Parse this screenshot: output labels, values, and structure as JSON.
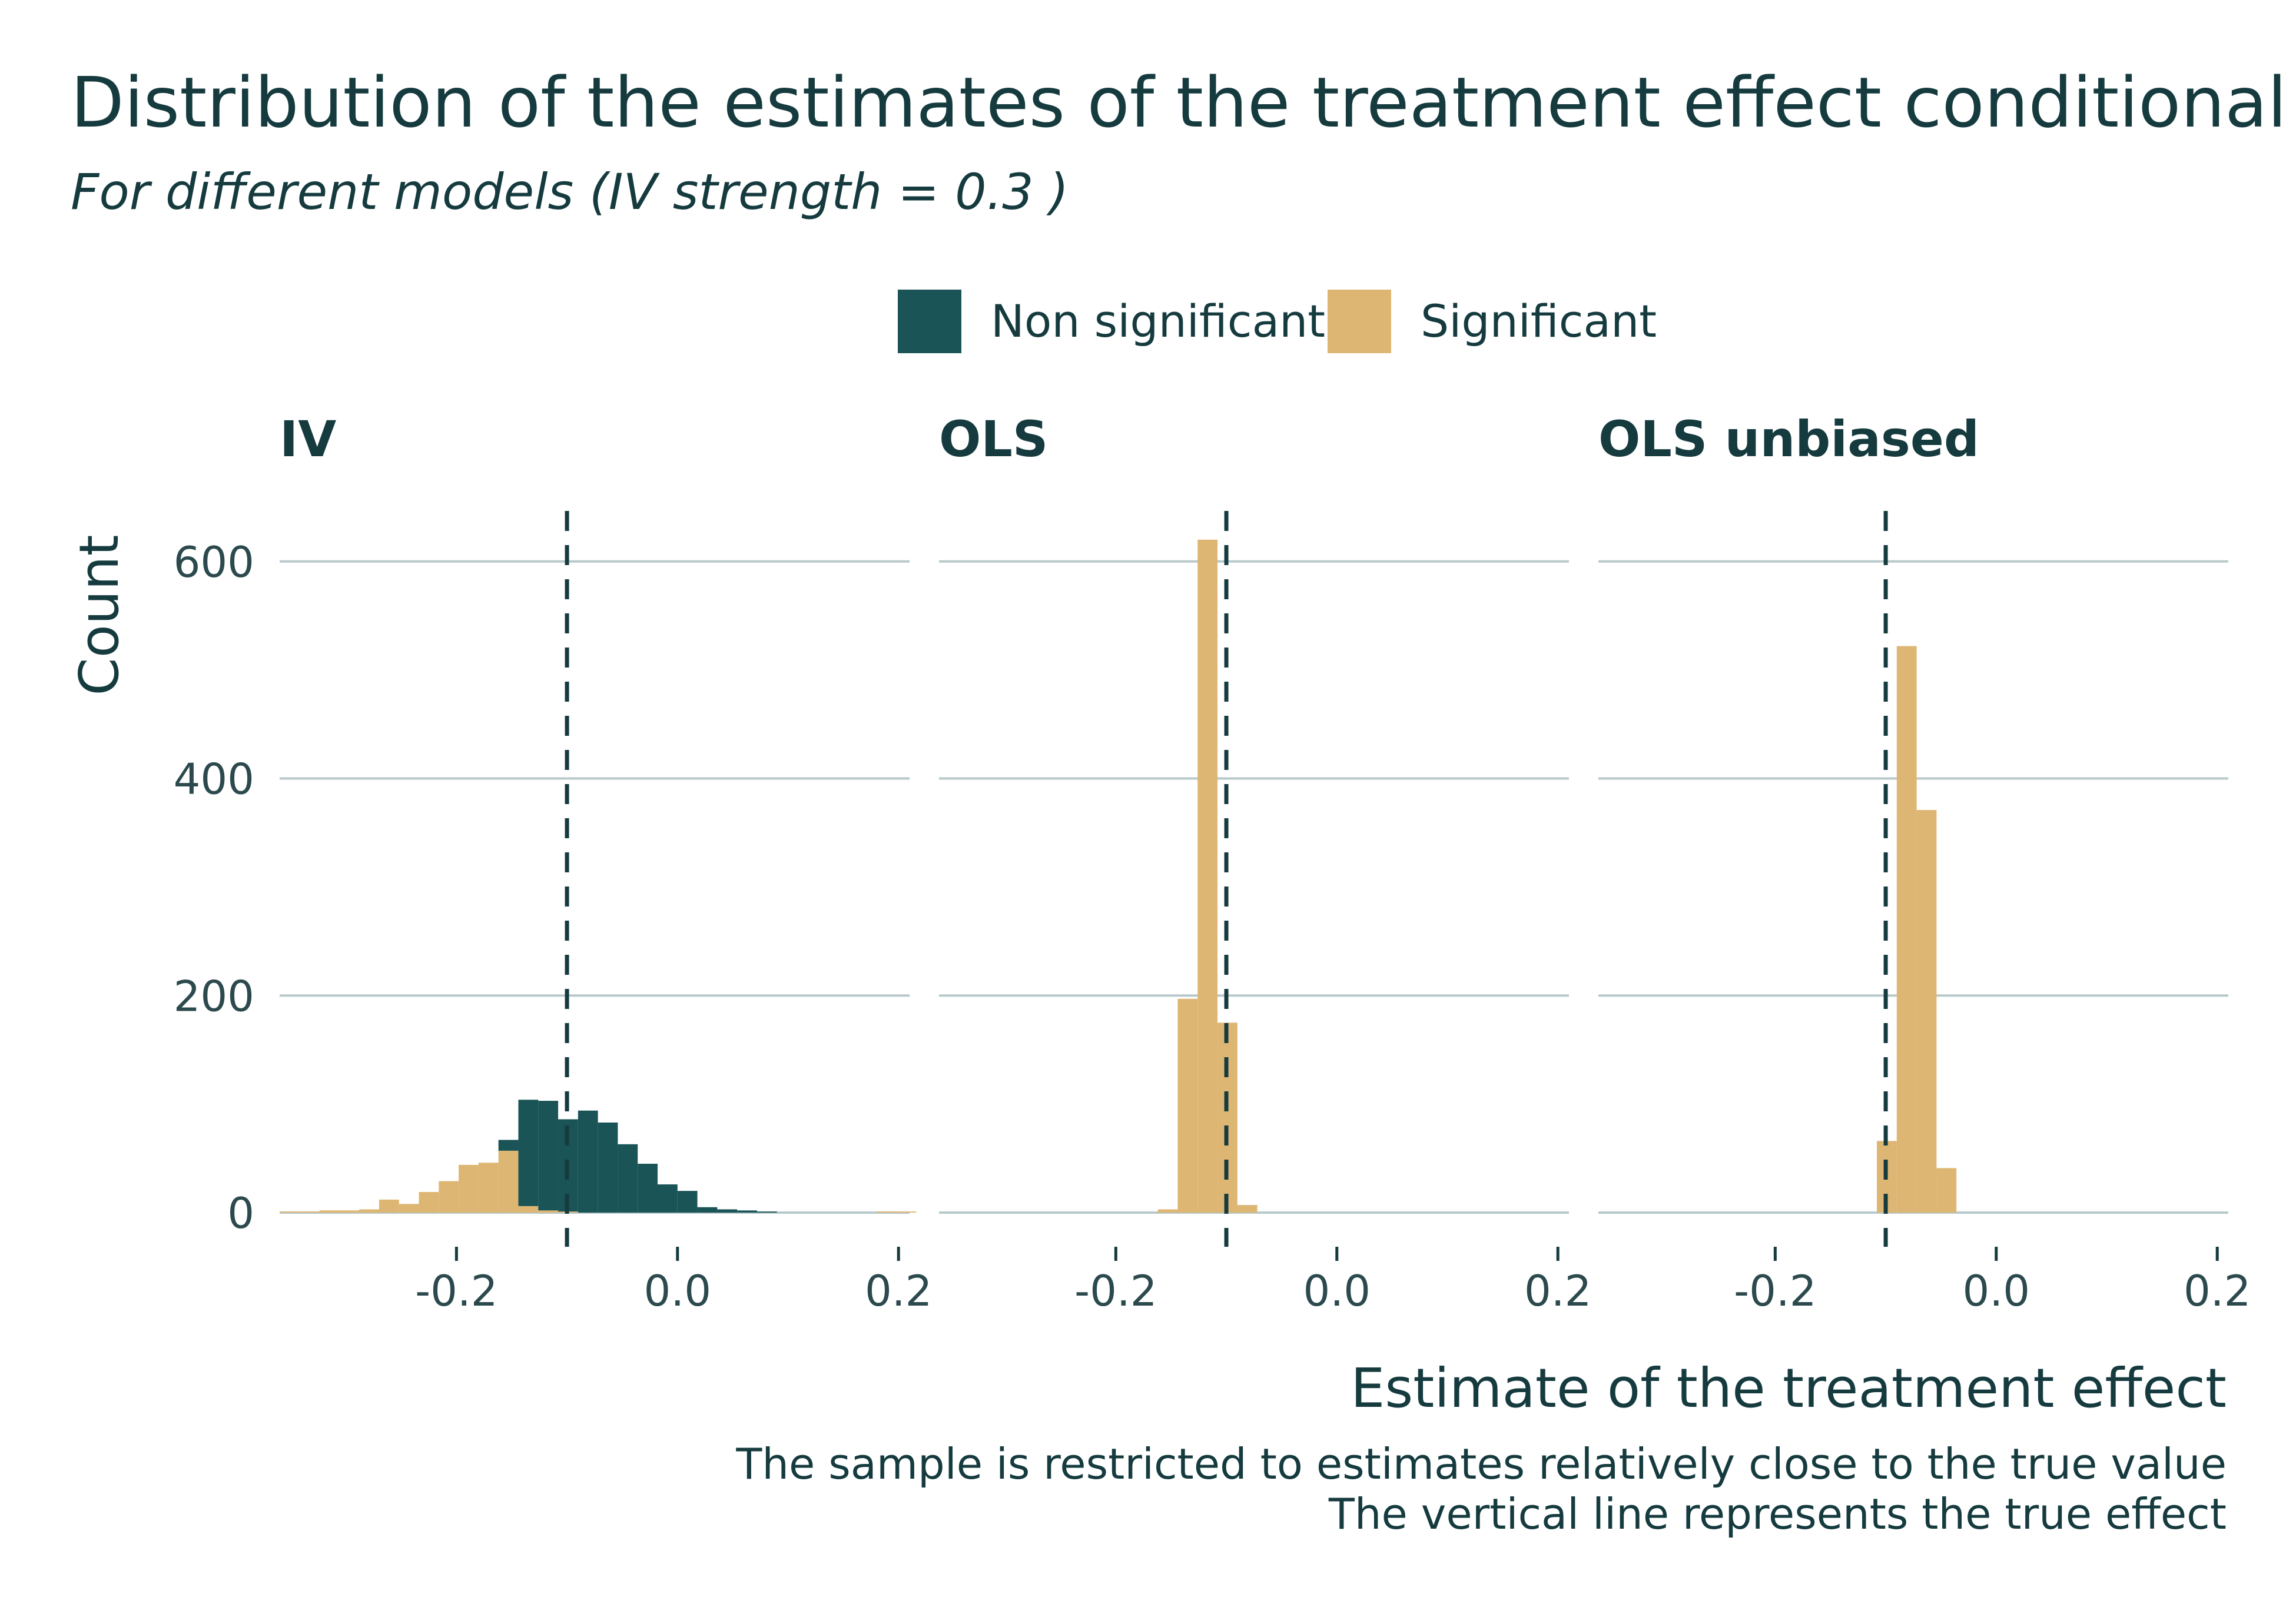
{
  "chart_data": {
    "type": "bar",
    "title": "Distribution of the estimates of the treatment effect conditional on sig",
    "subtitle": "For different models (IV strength = 0.3 )",
    "xlabel": "Estimate of the treatment effect",
    "ylabel": "Count",
    "captions": [
      "The sample is restricted to estimates relatively close to the true value",
      "The vertical line represents the true effect"
    ],
    "legend": {
      "position": "top",
      "entries": [
        {
          "name": "Non significant",
          "color": "#1a5456"
        },
        {
          "name": "Significant",
          "color": "#deb673"
        }
      ]
    },
    "true_effect": -0.1,
    "xlim": [
      -0.36,
      0.21
    ],
    "ylim": [
      0,
      640
    ],
    "xticks": [
      -0.2,
      0.0,
      0.2
    ],
    "xtick_labels": [
      "-0.2",
      "0.0",
      "0.2"
    ],
    "yticks": [
      0,
      200,
      400,
      600
    ],
    "ytick_labels": [
      "0",
      "200",
      "400",
      "600"
    ],
    "bin_width": 0.018,
    "bin_start": -0.36,
    "grid": true,
    "panels": [
      {
        "name": "IV",
        "significant": [
          1,
          1,
          2,
          2,
          3,
          12,
          8,
          19,
          29,
          44,
          46,
          57,
          6,
          2,
          1,
          0,
          0,
          0,
          0,
          0,
          0,
          0,
          0,
          0,
          0,
          0,
          0,
          0,
          0,
          0,
          1,
          1
        ],
        "non_significant": [
          0,
          0,
          0,
          0,
          0,
          0,
          0,
          0,
          0,
          0,
          0,
          10,
          98,
          101,
          85,
          94,
          83,
          63,
          45,
          26,
          20,
          5,
          3,
          2,
          1,
          0,
          0,
          0,
          0,
          0,
          0,
          0
        ]
      },
      {
        "name": "OLS",
        "significant": [
          0,
          0,
          0,
          0,
          0,
          0,
          0,
          0,
          0,
          0,
          0,
          3,
          197,
          620,
          175,
          7,
          0,
          0,
          0,
          0,
          0,
          0,
          0,
          0,
          0,
          0,
          0,
          0,
          0,
          0,
          0,
          0
        ],
        "non_significant": [
          0,
          0,
          0,
          0,
          0,
          0,
          0,
          0,
          0,
          0,
          0,
          0,
          0,
          0,
          0,
          0,
          0,
          0,
          0,
          0,
          0,
          0,
          0,
          0,
          0,
          0,
          0,
          0,
          0,
          0,
          0,
          0
        ]
      },
      {
        "name": "OLS unbiased",
        "significant": [
          0,
          0,
          0,
          0,
          0,
          0,
          0,
          0,
          0,
          0,
          0,
          0,
          0,
          0,
          66,
          522,
          371,
          41,
          0,
          0,
          0,
          0,
          0,
          0,
          0,
          0,
          0,
          0,
          0,
          0,
          0,
          0
        ],
        "non_significant": [
          0,
          0,
          0,
          0,
          0,
          0,
          0,
          0,
          0,
          0,
          0,
          0,
          0,
          0,
          0,
          0,
          0,
          0,
          0,
          0,
          0,
          0,
          0,
          0,
          0,
          0,
          0,
          0,
          0,
          0,
          0,
          0
        ]
      }
    ]
  }
}
